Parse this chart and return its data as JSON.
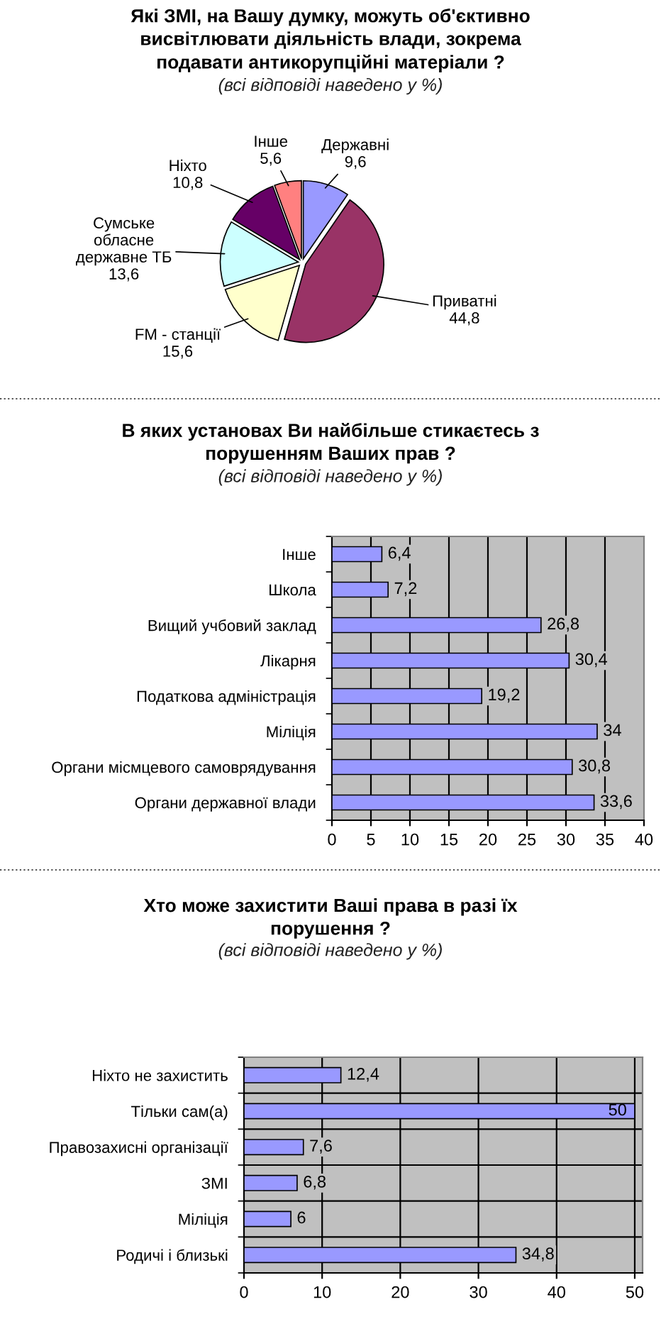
{
  "chart_data": [
    {
      "type": "pie",
      "title": "Які ЗМІ, на Вашу думку, можуть об'єктивно\nвисвітлювати діяльність влади, зокрема\nподавати антикорупційні матеріали ?",
      "subtitle": "(всі відповіді наведено у %)",
      "categories": [
        "Державні",
        "Приватні",
        "FM - станції",
        "Сумське\nобласне\nдержавне ТБ",
        "Ніхто",
        "Інше"
      ],
      "values": [
        9.6,
        44.8,
        15.6,
        13.6,
        10.8,
        5.6
      ],
      "value_labels": [
        "9,6",
        "44,8",
        "15,6",
        "13,6",
        "10,8",
        "5,6"
      ],
      "colors": [
        "#9999ff",
        "#993366",
        "#ffffcc",
        "#ccffff",
        "#660066",
        "#ff8080"
      ]
    },
    {
      "type": "bar",
      "orientation": "horizontal",
      "title": "В яких установах Ви найбільше стикаєтесь з\nпорушенням Ваших прав ?",
      "subtitle": "(всі відповіді наведено у %)",
      "categories": [
        "Інше",
        "Школа",
        "Вищий учбовий заклад",
        "Лікарня",
        "Податкова адміністрація",
        "Міліція",
        "Органи місмцевого самоврядування",
        "Органи державної влади"
      ],
      "values": [
        6.4,
        7.2,
        26.8,
        30.4,
        19.2,
        34,
        30.8,
        33.6
      ],
      "value_labels": [
        "6,4",
        "7,2",
        "26,8",
        "30,4",
        "19,2",
        "34",
        "30,8",
        "33,6"
      ],
      "color": "#9999ff",
      "xlim": [
        0,
        40
      ],
      "xticks": [
        0,
        5,
        10,
        15,
        20,
        25,
        30,
        35,
        40
      ],
      "grid": "x"
    },
    {
      "type": "bar",
      "orientation": "horizontal",
      "title": "Хто може захистити Ваші права в разі їх\nпорушення ?",
      "subtitle": "(всі відповіді наведено у %)",
      "categories": [
        "Ніхто не захистить",
        "Тільки сам(а)",
        "Правозахисні організації",
        "ЗМІ",
        "Міліція",
        "Родичі і близькі"
      ],
      "values": [
        12.4,
        50,
        7.6,
        6.8,
        6,
        34.8
      ],
      "value_labels": [
        "12,4",
        "50",
        "7,6",
        "6,8",
        "6",
        "34,8"
      ],
      "color": "#9999ff",
      "xlim": [
        0,
        51
      ],
      "xticks": [
        0,
        10,
        20,
        30,
        40,
        50
      ],
      "grid": true
    }
  ]
}
